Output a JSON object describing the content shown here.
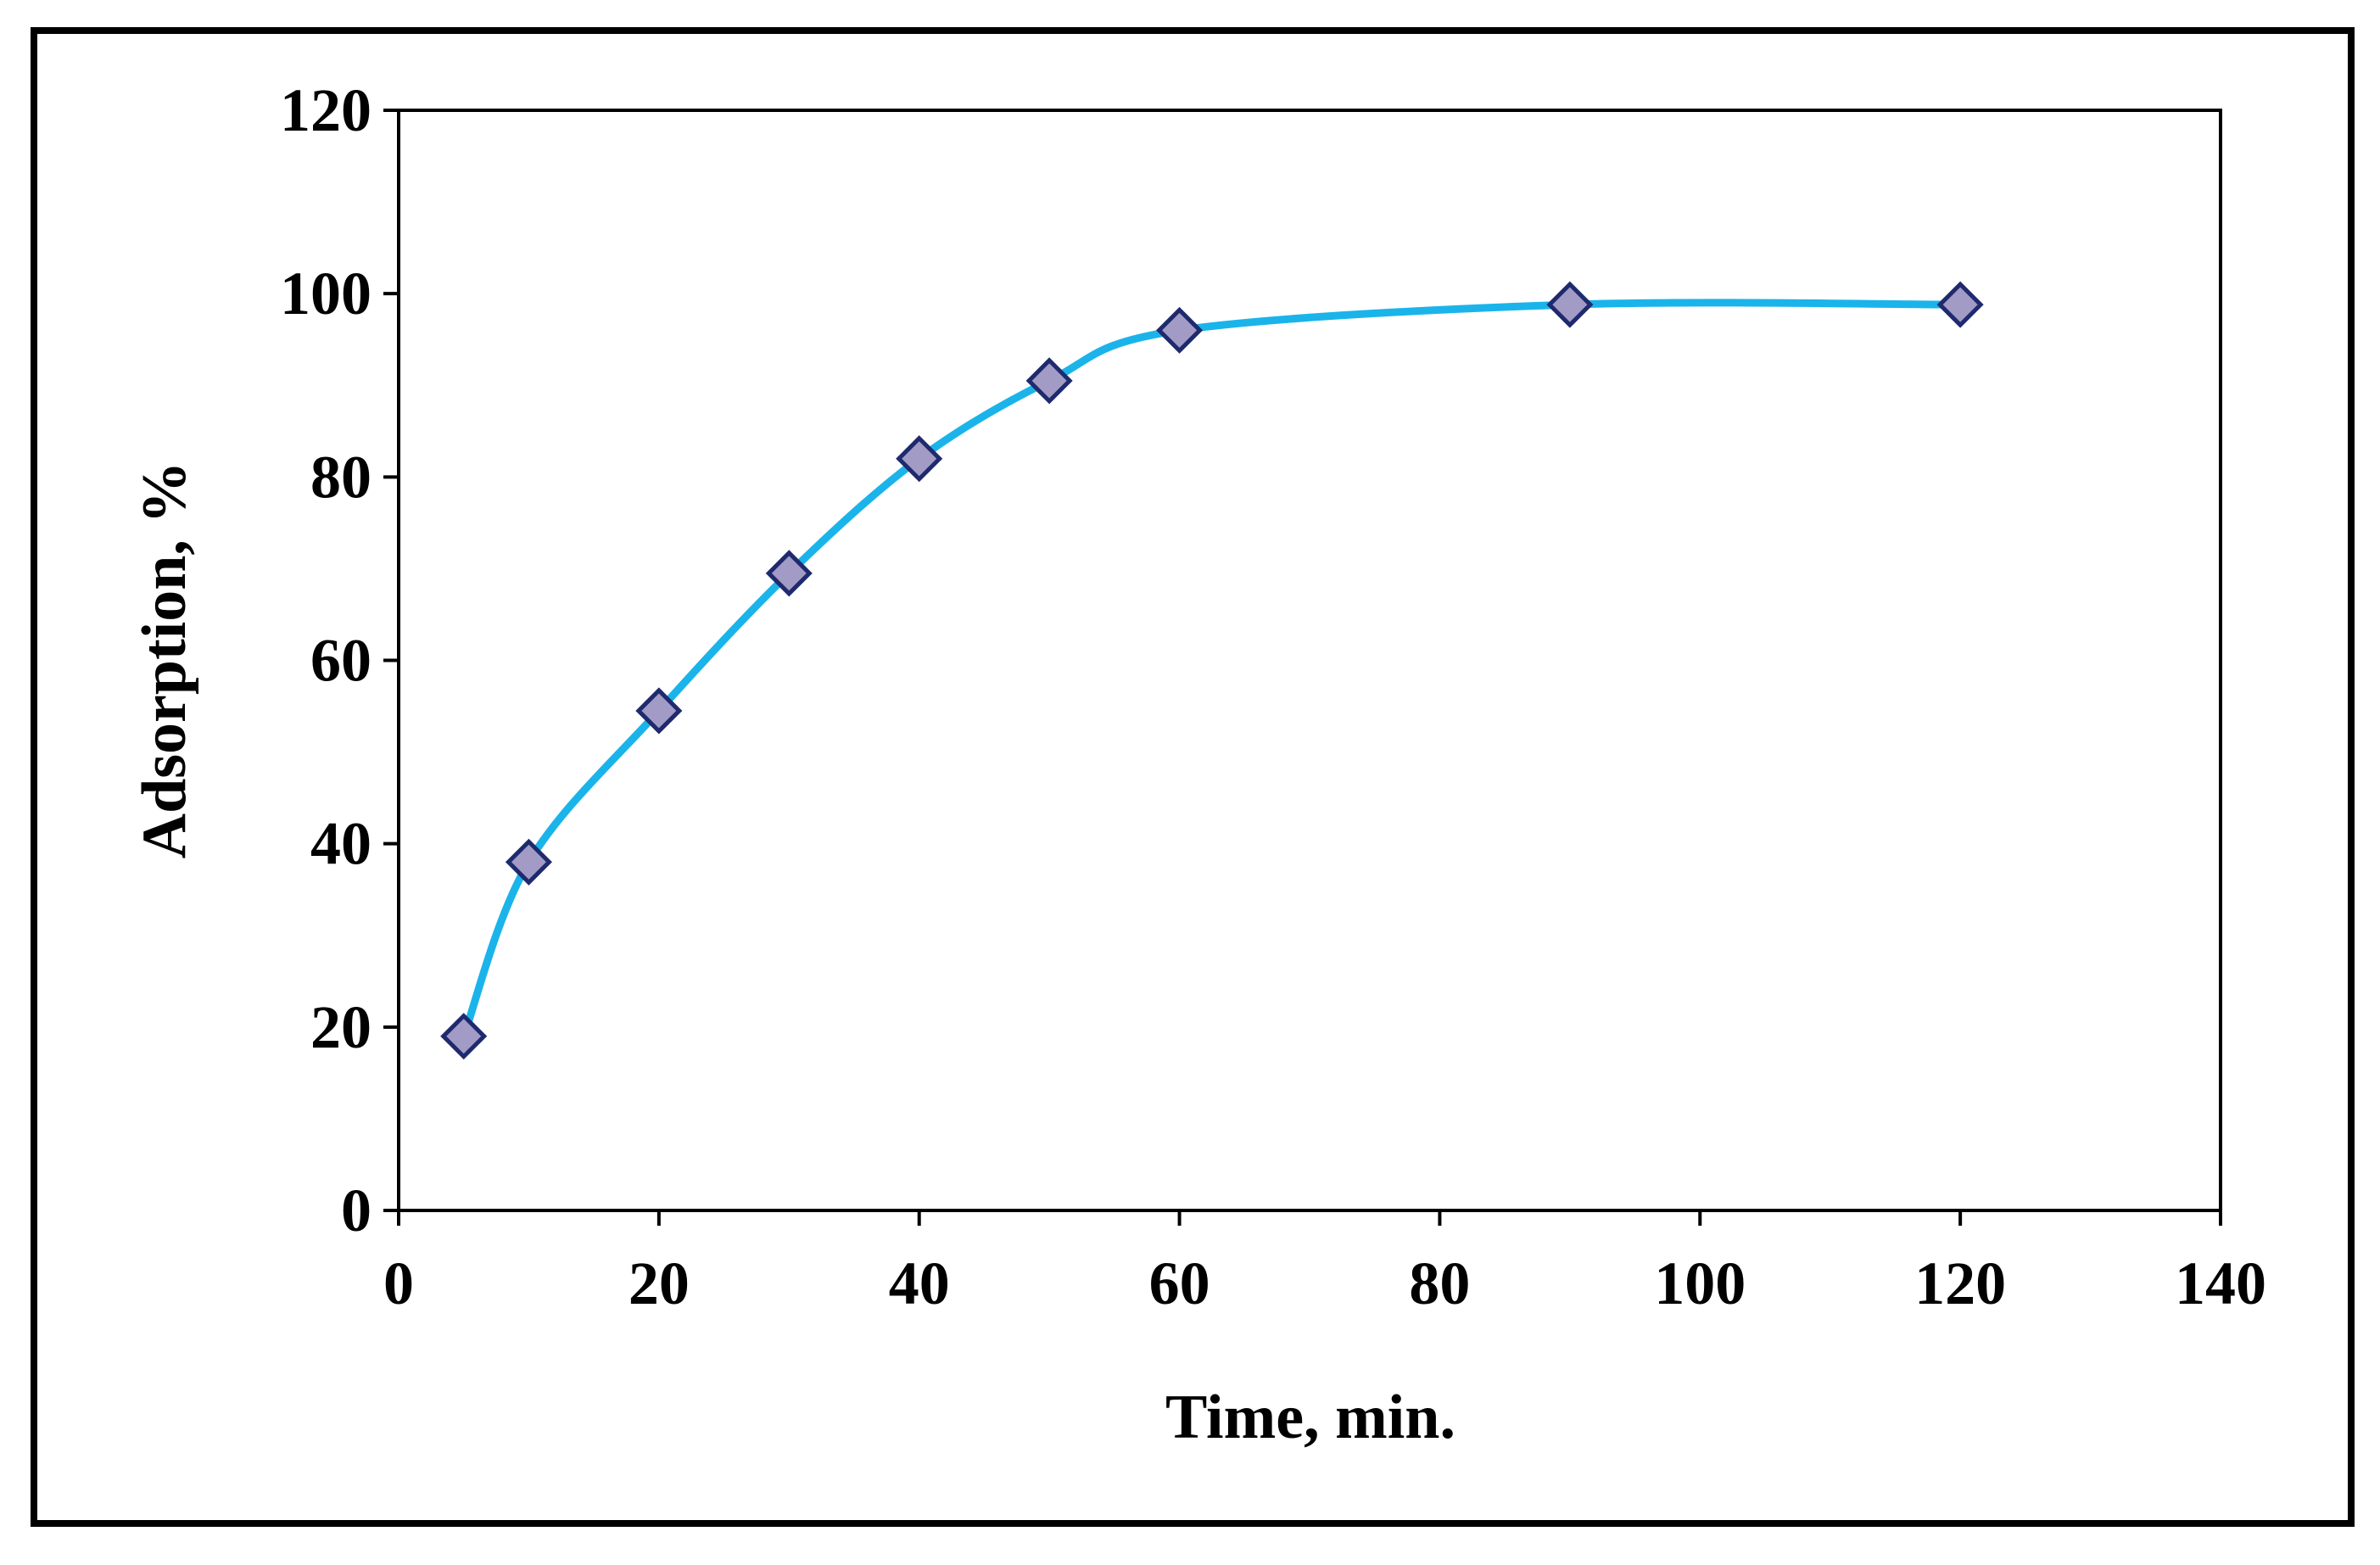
{
  "chart_data": {
    "type": "scatter",
    "title": "",
    "xlabel": "Time, min.",
    "ylabel": "Adsorption, %",
    "xlim": [
      0,
      140
    ],
    "ylim": [
      0,
      120
    ],
    "x_ticks": [
      0,
      20,
      40,
      60,
      80,
      100,
      120,
      140
    ],
    "y_ticks": [
      0,
      20,
      40,
      60,
      80,
      100,
      120
    ],
    "grid": false,
    "legend": "none",
    "series": [
      {
        "x": [
          5,
          10,
          20,
          30,
          40,
          50,
          60,
          90,
          120
        ],
        "y": [
          19,
          38,
          54.5,
          69.5,
          82,
          90.5,
          96,
          98.8,
          98.8
        ],
        "marker": "diamond",
        "line": "smooth",
        "line_color": "#1ab4ea",
        "marker_fill": "#a29bc6",
        "marker_edge": "#1f2a6e"
      }
    ]
  }
}
